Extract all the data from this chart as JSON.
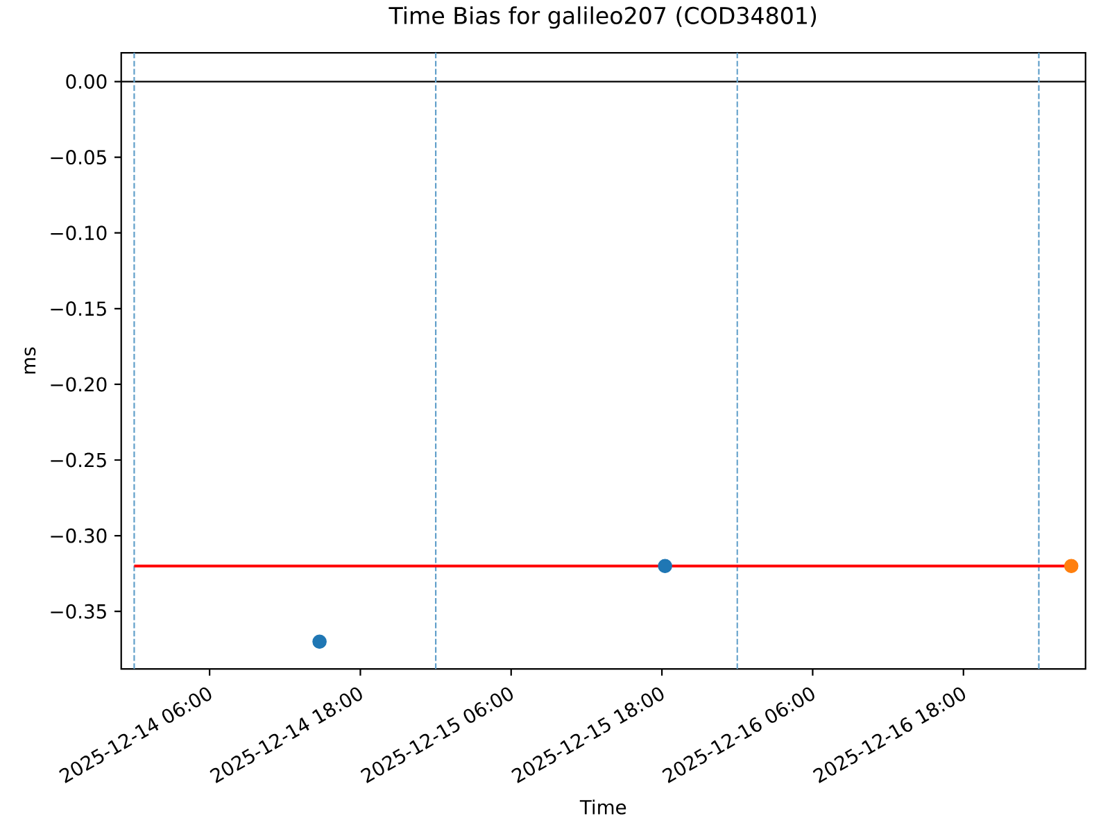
{
  "chart_data": {
    "type": "scatter",
    "title": "Time Bias for galileo207 (COD34801)",
    "xlabel": "Time",
    "ylabel": "ms",
    "xlim": [
      "2025-12-13T22:58",
      "2025-12-17T03:43"
    ],
    "ylim": [
      -0.388,
      0.019
    ],
    "xticks": [
      {
        "value": "2025-12-14T06:00",
        "label": "2025-12-14 06:00"
      },
      {
        "value": "2025-12-14T18:00",
        "label": "2025-12-14 18:00"
      },
      {
        "value": "2025-12-15T06:00",
        "label": "2025-12-15 06:00"
      },
      {
        "value": "2025-12-15T18:00",
        "label": "2025-12-15 18:00"
      },
      {
        "value": "2025-12-16T06:00",
        "label": "2025-12-16 06:00"
      },
      {
        "value": "2025-12-16T18:00",
        "label": "2025-12-16 18:00"
      }
    ],
    "yticks": [
      {
        "value": 0,
        "label": "0.00"
      },
      {
        "value": -0.05,
        "label": "−0.05"
      },
      {
        "value": -0.1,
        "label": "−0.10"
      },
      {
        "value": -0.15,
        "label": "−0.15"
      },
      {
        "value": -0.2,
        "label": "−0.20"
      },
      {
        "value": -0.25,
        "label": "−0.25"
      },
      {
        "value": -0.3,
        "label": "−0.30"
      },
      {
        "value": -0.35,
        "label": "−0.35"
      }
    ],
    "series": [
      {
        "type": "line",
        "color": "#ff0000",
        "marker": "none",
        "x": [
          "2025-12-14T00:00",
          "2025-12-17T02:35"
        ],
        "values": [
          -0.32,
          -0.32
        ]
      },
      {
        "color": "#1f77b4",
        "marker": "circle",
        "x": [
          "2025-12-14T14:45",
          "2025-12-15T18:15"
        ],
        "values": [
          -0.37,
          -0.32
        ]
      },
      {
        "color": "#ff7f0e",
        "marker": "circle",
        "x": [
          "2025-12-17T02:35"
        ],
        "values": [
          -0.32
        ]
      }
    ],
    "ref_lines": [
      {
        "axis": "y",
        "value": 0,
        "color": "#000000",
        "line_style": "solid"
      },
      {
        "axis": "x",
        "value": "2025-12-14T00:00",
        "color": "#62a0ca",
        "line_style": "dashed"
      },
      {
        "axis": "x",
        "value": "2025-12-15T00:00",
        "color": "#62a0ca",
        "line_style": "dashed"
      },
      {
        "axis": "x",
        "value": "2025-12-16T00:00",
        "color": "#62a0ca",
        "line_style": "dashed"
      },
      {
        "axis": "x",
        "value": "2025-12-17T00:00",
        "color": "#62a0ca",
        "line_style": "dashed"
      }
    ]
  }
}
